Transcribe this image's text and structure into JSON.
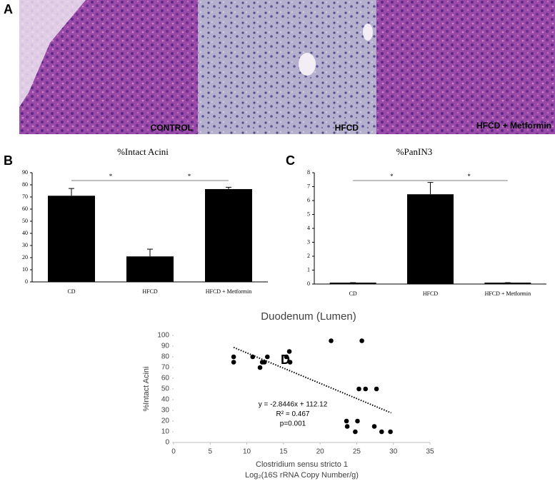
{
  "figure_a": {
    "panel": "A",
    "images": [
      "CONTROL",
      "HFCD",
      "HFCD + Metformin"
    ]
  },
  "chart_data": [
    {
      "type": "bar",
      "panel": "B",
      "title": "%Intact Acini",
      "categories": [
        "CD",
        "HFCD",
        "HFCD + Metformin"
      ],
      "values": [
        71,
        21,
        76.5
      ],
      "errors": [
        6,
        6,
        1.5
      ],
      "color": "#000000",
      "ylim": [
        0,
        90
      ],
      "yticks": [
        0,
        10,
        20,
        30,
        40,
        50,
        60,
        70,
        80,
        90
      ],
      "significance": [
        "*",
        "*"
      ]
    },
    {
      "type": "bar",
      "panel": "C",
      "title": "%PanIN3",
      "categories": [
        "CD",
        "HFCD",
        "HFCD + Metformin"
      ],
      "values": [
        0.1,
        6.45,
        0.1
      ],
      "errors": [
        0,
        0.85,
        0
      ],
      "color": "#000000",
      "ylim": [
        0,
        8
      ],
      "yticks": [
        0,
        1,
        2,
        3,
        4,
        5,
        6,
        7,
        8
      ],
      "significance": [
        "*",
        "*"
      ]
    },
    {
      "type": "scatter",
      "panel": "D",
      "title": "Duodenum (Lumen)",
      "x_label": "Clostridium sensu stricto 1",
      "x_label_2": "Log₂(16S rRNA Copy Number/g)",
      "y_label": "%Intact Acini",
      "color": "#000000",
      "x": [
        8.2,
        8.2,
        10.8,
        11.8,
        12.1,
        12.4,
        12.8,
        15.4,
        15.8,
        15.9,
        21.5,
        25.7,
        25.3,
        26.2,
        27.7,
        23.6,
        23.7,
        25.1,
        24.8,
        27.4,
        28.4,
        29.6
      ],
      "y": [
        80,
        75,
        80,
        70,
        75,
        75,
        80,
        80,
        85,
        75,
        95,
        95,
        50,
        50,
        50,
        20,
        15,
        20,
        10,
        15,
        10,
        10
      ],
      "xlim": [
        0,
        35
      ],
      "xticks": [
        0,
        5,
        10,
        15,
        20,
        25,
        30,
        35
      ],
      "ylim": [
        0,
        100
      ],
      "yticks": [
        0,
        10,
        20,
        30,
        40,
        50,
        60,
        70,
        80,
        90,
        100
      ],
      "trendline": {
        "slope": -2.8446,
        "intercept": 112.12,
        "x_range": [
          8.2,
          29.7
        ],
        "labels": [
          "y = -2.8446x + 112.12",
          "R² = 0.467",
          "p=0.001"
        ]
      }
    }
  ]
}
